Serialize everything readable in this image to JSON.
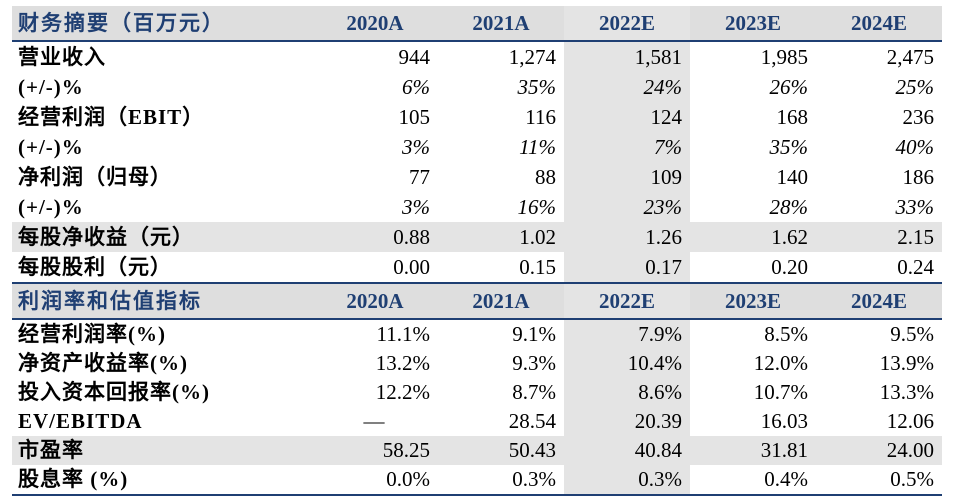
{
  "table1": {
    "title": "财务摘要（百万元）",
    "years": [
      "2020A",
      "2021A",
      "2022E",
      "2023E",
      "2024E"
    ],
    "rows": [
      {
        "label": "营业收入",
        "values": [
          "944",
          "1,274",
          "1,581",
          "1,985",
          "2,475"
        ]
      },
      {
        "label": "(+/-)%",
        "values": [
          "6%",
          "35%",
          "24%",
          "26%",
          "25%"
        ]
      },
      {
        "label": "经营利润（EBIT）",
        "values": [
          "105",
          "116",
          "124",
          "168",
          "236"
        ]
      },
      {
        "label": "(+/-)%",
        "values": [
          "3%",
          "11%",
          "7%",
          "35%",
          "40%"
        ]
      },
      {
        "label": "净利润（归母）",
        "values": [
          "77",
          "88",
          "109",
          "140",
          "186"
        ]
      },
      {
        "label": "(+/-)%",
        "values": [
          "3%",
          "16%",
          "23%",
          "28%",
          "33%"
        ]
      },
      {
        "label": "每股净收益（元）",
        "values": [
          "0.88",
          "1.02",
          "1.26",
          "1.62",
          "2.15"
        ]
      },
      {
        "label": "每股股利（元）",
        "values": [
          "0.00",
          "0.15",
          "0.17",
          "0.20",
          "0.24"
        ]
      }
    ]
  },
  "table2": {
    "title": "利润率和估值指标",
    "years": [
      "2020A",
      "2021A",
      "2022E",
      "2023E",
      "2024E"
    ],
    "rows": [
      {
        "label": "经营利润率(%)",
        "values": [
          "11.1%",
          "9.1%",
          "7.9%",
          "8.5%",
          "9.5%"
        ]
      },
      {
        "label": "净资产收益率(%)",
        "values": [
          "13.2%",
          "9.3%",
          "10.4%",
          "12.0%",
          "13.9%"
        ]
      },
      {
        "label": "投入资本回报率(%)",
        "values": [
          "12.2%",
          "8.7%",
          "8.6%",
          "10.7%",
          "13.3%"
        ]
      },
      {
        "label": "EV/EBITDA",
        "values": [
          "—",
          "28.54",
          "20.39",
          "16.03",
          "12.06"
        ]
      },
      {
        "label": "市盈率",
        "values": [
          "58.25",
          "50.43",
          "40.84",
          "31.81",
          "24.00"
        ]
      },
      {
        "label": "股息率 (%)",
        "values": [
          "0.0%",
          "0.3%",
          "0.3%",
          "0.4%",
          "0.5%"
        ]
      }
    ]
  }
}
